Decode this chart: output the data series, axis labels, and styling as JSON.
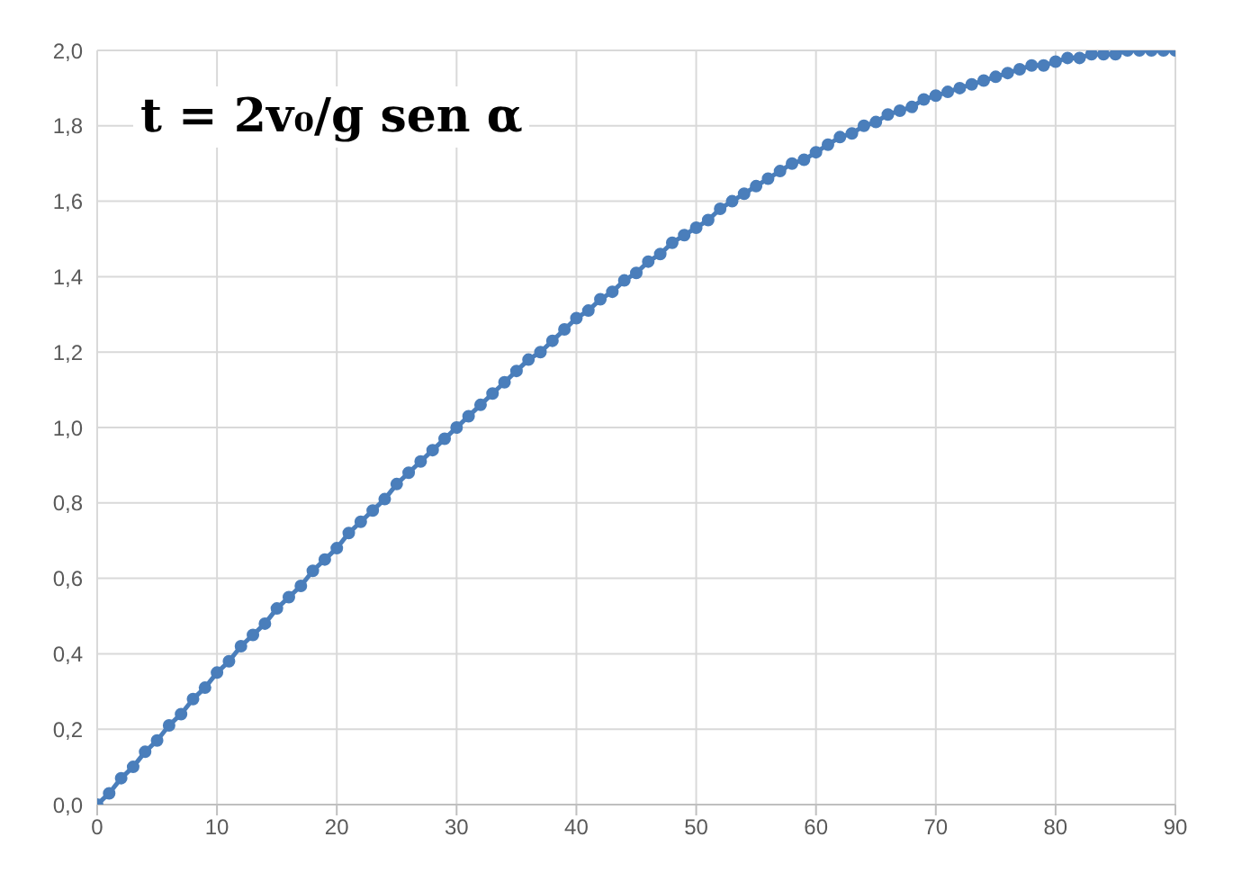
{
  "chart_data": {
    "type": "line",
    "annotations": [
      "t = 2v₀/g sen α"
    ],
    "x": [
      0,
      1,
      2,
      3,
      4,
      5,
      6,
      7,
      8,
      9,
      10,
      11,
      12,
      13,
      14,
      15,
      16,
      17,
      18,
      19,
      20,
      21,
      22,
      23,
      24,
      25,
      26,
      27,
      28,
      29,
      30,
      31,
      32,
      33,
      34,
      35,
      36,
      37,
      38,
      39,
      40,
      41,
      42,
      43,
      44,
      45,
      46,
      47,
      48,
      49,
      50,
      51,
      52,
      53,
      54,
      55,
      56,
      57,
      58,
      59,
      60,
      61,
      62,
      63,
      64,
      65,
      66,
      67,
      68,
      69,
      70,
      71,
      72,
      73,
      74,
      75,
      76,
      77,
      78,
      79,
      80,
      81,
      82,
      83,
      84,
      85,
      86,
      87,
      88,
      89,
      90
    ],
    "series": [
      {
        "color": "#4a7ebb",
        "values": [
          0,
          0.03,
          0.07,
          0.1,
          0.14,
          0.17,
          0.21,
          0.24,
          0.28,
          0.31,
          0.35,
          0.38,
          0.42,
          0.45,
          0.48,
          0.52,
          0.55,
          0.58,
          0.62,
          0.65,
          0.68,
          0.72,
          0.75,
          0.78,
          0.81,
          0.85,
          0.88,
          0.91,
          0.94,
          0.97,
          1.0,
          1.03,
          1.06,
          1.09,
          1.12,
          1.15,
          1.18,
          1.2,
          1.23,
          1.26,
          1.29,
          1.31,
          1.34,
          1.36,
          1.39,
          1.41,
          1.44,
          1.46,
          1.49,
          1.51,
          1.53,
          1.55,
          1.58,
          1.6,
          1.62,
          1.64,
          1.66,
          1.68,
          1.7,
          1.71,
          1.73,
          1.75,
          1.77,
          1.78,
          1.8,
          1.81,
          1.83,
          1.84,
          1.85,
          1.87,
          1.88,
          1.89,
          1.9,
          1.91,
          1.92,
          1.93,
          1.94,
          1.95,
          1.96,
          1.96,
          1.97,
          1.98,
          1.98,
          1.99,
          1.99,
          1.99,
          2.0,
          2.0,
          2.0,
          2.0,
          2.0
        ]
      }
    ],
    "xlim": [
      0,
      90
    ],
    "xticks": [
      0,
      10,
      20,
      30,
      40,
      50,
      60,
      70,
      80,
      90
    ],
    "ylim": [
      0,
      2
    ],
    "yticks": [
      {
        "value": 0,
        "label": "0,0"
      },
      {
        "value": 0.2,
        "label": "0,2"
      },
      {
        "value": 0.4,
        "label": "0,4"
      },
      {
        "value": 0.6,
        "label": "0,6"
      },
      {
        "value": 0.8,
        "label": "0,8"
      },
      {
        "value": 1,
        "label": "1,0"
      },
      {
        "value": 1.2,
        "label": "1,2"
      },
      {
        "value": 1.4,
        "label": "1,4"
      },
      {
        "value": 1.6,
        "label": "1,6"
      },
      {
        "value": 1.8,
        "label": "1,8"
      },
      {
        "value": 2,
        "label": "2,0"
      }
    ],
    "grid": true,
    "marker": "circle",
    "line_style": "solid"
  }
}
